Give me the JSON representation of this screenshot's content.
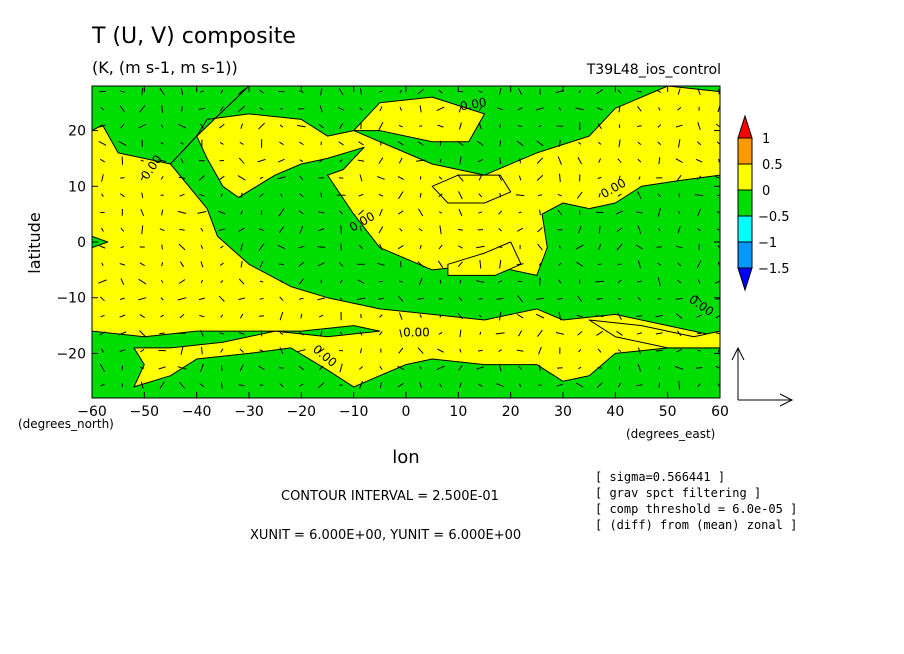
{
  "header": {
    "title": "T (U, V) composite",
    "units": "(K, (m s-1, m s-1))",
    "run_name": "T39L48_ios_control"
  },
  "axes": {
    "xlabel": "lon",
    "ylabel": "latitude",
    "x_units": "(degrees_east)",
    "y_units": "(degrees_north)"
  },
  "footer": {
    "contour_interval": "CONTOUR INTERVAL = 2.500E-01",
    "vector_units": "XUNIT = 6.000E+00, YUNIT = 6.000E+00",
    "notes": [
      "[ sigma=0.566441 ]",
      "[ grav spct filtering ]",
      "[ comp threshold = 6.0e-05 ]",
      "[ (diff) from (mean) zonal ]"
    ]
  },
  "colors": {
    "positive_0_to_0.5": "#ffff00",
    "negative_-0.5_to_0": "#00dd00",
    "band_0.5_to_1": "#ff9900",
    "above_1": "#ff0000",
    "band_-1_to_-0.5": "#00ffff",
    "band_-1.5_to_-1": "#0099ff",
    "below_-1.5": "#0000ff"
  },
  "chart_data": {
    "type": "contour",
    "title": "T (U, V) composite",
    "xlabel": "lon",
    "ylabel": "latitude",
    "xlim": [
      -60,
      60
    ],
    "ylim": [
      -28,
      28
    ],
    "x_ticks": [
      -60,
      -50,
      -40,
      -30,
      -20,
      -10,
      0,
      10,
      20,
      30,
      40,
      50,
      60
    ],
    "y_ticks": [
      -20,
      -10,
      0,
      10,
      20
    ],
    "contour_labels": [
      "0.00",
      "0.00",
      "0.00",
      "0.00",
      "0.00",
      "0.00",
      "0.00"
    ],
    "colorbar": {
      "levels": [
        1,
        0.5,
        0,
        -0.5,
        -1,
        -1.5
      ],
      "labels": [
        "1",
        "0.5",
        "0",
        "-0.5",
        "-1",
        "-1.5"
      ]
    },
    "negative_regions": [
      [
        [
          -60,
          28
        ],
        [
          -30,
          28
        ],
        [
          -40,
          19
        ],
        [
          -45,
          14
        ],
        [
          -55,
          16
        ],
        [
          -58,
          21
        ],
        [
          -60,
          20
        ]
      ],
      [
        [
          -30,
          28
        ],
        [
          60,
          28
        ],
        [
          60,
          27
        ],
        [
          50,
          28
        ],
        [
          40,
          24
        ],
        [
          35,
          19
        ],
        [
          25,
          16
        ],
        [
          15,
          12
        ],
        [
          5,
          14
        ],
        [
          -5,
          18
        ],
        [
          -10,
          20
        ],
        [
          -15,
          19
        ],
        [
          -20,
          22
        ],
        [
          -30,
          23
        ],
        [
          -38,
          22
        ],
        [
          -40,
          19
        ]
      ],
      [
        [
          -40,
          19
        ],
        [
          -45,
          14
        ],
        [
          -38,
          6
        ],
        [
          -36,
          1
        ],
        [
          -30,
          -4
        ],
        [
          -22,
          -8
        ],
        [
          -15,
          -10
        ],
        [
          -5,
          -12
        ],
        [
          5,
          -13
        ],
        [
          15,
          -14
        ],
        [
          25,
          -12
        ],
        [
          30,
          -14
        ],
        [
          40,
          -13
        ],
        [
          50,
          -15
        ],
        [
          60,
          -17
        ],
        [
          60,
          12
        ],
        [
          52,
          11
        ],
        [
          45,
          10
        ],
        [
          40,
          7
        ],
        [
          35,
          6
        ],
        [
          30,
          7
        ],
        [
          26,
          5
        ],
        [
          27,
          -1
        ],
        [
          25,
          -6
        ],
        [
          15,
          -4
        ],
        [
          5,
          -5
        ],
        [
          -5,
          -1
        ],
        [
          -10,
          5
        ],
        [
          -15,
          12
        ],
        [
          -12,
          13
        ],
        [
          -8,
          17
        ],
        [
          -15,
          15
        ],
        [
          -20,
          14
        ],
        [
          -25,
          12
        ],
        [
          -32,
          8
        ],
        [
          -35,
          10
        ],
        [
          -38,
          15
        ]
      ],
      [
        [
          -5,
          -16
        ],
        [
          -15,
          -17
        ],
        [
          -25,
          -16
        ],
        [
          -35,
          -18
        ],
        [
          -45,
          -19
        ],
        [
          -52,
          -19
        ],
        [
          -50,
          -22
        ],
        [
          -52,
          -26
        ],
        [
          -45,
          -24
        ],
        [
          -40,
          -21
        ],
        [
          -30,
          -20
        ],
        [
          -22,
          -19
        ],
        [
          -15,
          -23
        ],
        [
          -10,
          -26
        ],
        [
          -5,
          -24
        ],
        [
          0,
          -22
        ],
        [
          5,
          -21
        ],
        [
          15,
          -22
        ],
        [
          25,
          -22
        ],
        [
          30,
          -25
        ],
        [
          35,
          -24
        ],
        [
          40,
          -20
        ],
        [
          50,
          -19
        ],
        [
          60,
          -19
        ],
        [
          60,
          -28
        ],
        [
          -60,
          -28
        ],
        [
          -60,
          -16
        ],
        [
          -50,
          -17
        ],
        [
          -40,
          -16
        ],
        [
          -30,
          -16
        ],
        [
          -20,
          -16
        ],
        [
          -10,
          -15
        ]
      ],
      [
        [
          -60,
          1
        ],
        [
          -57,
          0
        ],
        [
          -60,
          -1
        ]
      ]
    ],
    "positive_regions": [
      [
        [
          -10,
          20
        ],
        [
          -5,
          25
        ],
        [
          5,
          26
        ],
        [
          15,
          23
        ],
        [
          12,
          18
        ],
        [
          5,
          18
        ],
        [
          -5,
          20
        ]
      ],
      [
        [
          5,
          10
        ],
        [
          10,
          12
        ],
        [
          18,
          12
        ],
        [
          20,
          9
        ],
        [
          15,
          7
        ],
        [
          8,
          7
        ]
      ],
      [
        [
          8,
          -4
        ],
        [
          15,
          -2
        ],
        [
          20,
          0
        ],
        [
          22,
          -4
        ],
        [
          17,
          -6
        ],
        [
          8,
          -6
        ]
      ],
      [
        [
          35,
          -14
        ],
        [
          45,
          -15
        ],
        [
          55,
          -17
        ],
        [
          60,
          -16
        ],
        [
          60,
          -19
        ],
        [
          50,
          -19
        ],
        [
          40,
          -17
        ]
      ]
    ]
  }
}
